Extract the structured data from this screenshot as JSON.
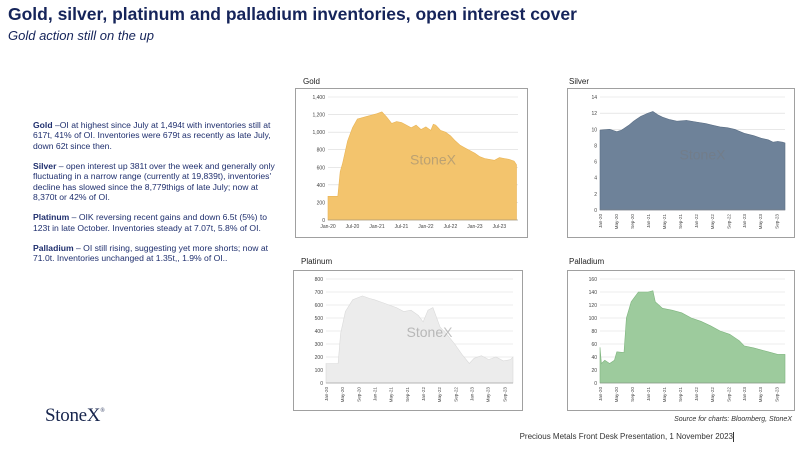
{
  "header": {
    "title": "Gold, silver, platinum and palladium inventories, open interest cover",
    "subtitle": "Gold action still on the up"
  },
  "bullets": [
    {
      "head": "Gold",
      "text": " –OI at highest since July at 1,494t with inventories still at 617t, 41% of OI.  Inventories were 679t as recently as late July, down 62t since then."
    },
    {
      "head": "Silver",
      "text": " – open interest up 381t over the week and generally only fluctuating in a narrow range (currently at 19,839t), inventories' decline has slowed since the 8,779thigs of late July; now at 8,370t or 42% of OI."
    },
    {
      "head": "Platinum",
      "text": " – OIK reversing recent gains and down 6.5t (5%) to 123t in late October.  Inventories steady at 7.07t, 5.8% of OI."
    },
    {
      "head": "Palladium",
      "text": " – OI still rising, suggesting yet more shorts; now at 71.0t.  Inventories unchanged at 1.35t,, 1.9% of OI.."
    }
  ],
  "logo": {
    "text": "StoneX",
    "mark": "®"
  },
  "source": "Source for charts: Bloomberg, StoneX",
  "footer": "Precious Metals Front Desk Presentation, 1 November 2023",
  "chart_data": [
    {
      "type": "area",
      "title": "Gold",
      "color": "#f3c46d",
      "stroke": "#e9b456",
      "watermark": "StoneX",
      "ylim": [
        0,
        1400
      ],
      "yticks": [
        0,
        200,
        400,
        600,
        800,
        1000,
        1200,
        1400
      ],
      "ytick_labels": [
        "0",
        "200",
        "400",
        "600",
        "800",
        "1,000",
        "1,200",
        "1,400"
      ],
      "xlim": [
        2020.0,
        2023.88
      ],
      "xticks": [
        2020.0,
        2020.5,
        2021.0,
        2021.5,
        2022.0,
        2022.5,
        2023.0,
        2023.5
      ],
      "xtick_labels": [
        "Jan-20",
        "Jul-20",
        "Jan-21",
        "Jul-21",
        "Jan-22",
        "Jul-22",
        "Jan-23",
        "Jul-23"
      ],
      "rotate_x": false,
      "x": [
        2020.0,
        2020.2,
        2020.25,
        2020.3,
        2020.4,
        2020.5,
        2020.6,
        2020.8,
        2021.0,
        2021.1,
        2021.2,
        2021.3,
        2021.4,
        2021.5,
        2021.6,
        2021.7,
        2021.8,
        2021.9,
        2022.0,
        2022.1,
        2022.15,
        2022.2,
        2022.3,
        2022.4,
        2022.5,
        2022.6,
        2022.7,
        2022.8,
        2022.9,
        2023.0,
        2023.1,
        2023.2,
        2023.3,
        2023.4,
        2023.5,
        2023.6,
        2023.7,
        2023.8,
        2023.85
      ],
      "y": [
        270,
        270,
        550,
        650,
        900,
        1050,
        1150,
        1180,
        1210,
        1230,
        1170,
        1100,
        1120,
        1110,
        1080,
        1050,
        1080,
        1030,
        1060,
        1020,
        1090,
        1080,
        1020,
        1000,
        960,
        900,
        850,
        820,
        790,
        760,
        720,
        700,
        690,
        680,
        710,
        700,
        690,
        670,
        630
      ]
    },
    {
      "type": "area",
      "title": "Silver",
      "color": "#6e8299",
      "stroke": "#5a6e85",
      "watermark": "StoneX",
      "ylim": [
        0,
        14
      ],
      "yticks": [
        0,
        2,
        4,
        6,
        8,
        10,
        12,
        14
      ],
      "ytick_labels": [
        "0",
        "2",
        "4",
        "6",
        "8",
        "10",
        "12",
        "14"
      ],
      "xlim": [
        2020.0,
        2023.85
      ],
      "xticks": [
        2020.0,
        2020.33,
        2020.67,
        2021.0,
        2021.33,
        2021.67,
        2022.0,
        2022.33,
        2022.67,
        2023.0,
        2023.33,
        2023.67
      ],
      "xtick_labels": [
        "Jan-20",
        "May-20",
        "Sep-20",
        "Jan-21",
        "May-21",
        "Sep-21",
        "Jan-22",
        "May-22",
        "Sep-22",
        "Jan-23",
        "May-23",
        "Sep-23"
      ],
      "rotate_x": true,
      "x": [
        2020.0,
        2020.2,
        2020.35,
        2020.45,
        2020.6,
        2020.7,
        2020.85,
        2021.0,
        2021.1,
        2021.2,
        2021.3,
        2021.45,
        2021.6,
        2021.8,
        2022.0,
        2022.2,
        2022.35,
        2022.5,
        2022.65,
        2022.8,
        2023.0,
        2023.2,
        2023.35,
        2023.5,
        2023.6,
        2023.7,
        2023.8,
        2023.85
      ],
      "y": [
        9.9,
        10.0,
        9.7,
        9.9,
        10.5,
        11.0,
        11.6,
        12.0,
        12.2,
        11.8,
        11.5,
        11.2,
        11.0,
        11.1,
        10.9,
        10.7,
        10.5,
        10.3,
        10.2,
        10.0,
        9.5,
        9.2,
        8.9,
        8.7,
        8.4,
        8.5,
        8.4,
        8.3
      ]
    },
    {
      "type": "area",
      "title": "Platinum",
      "color": "#ececec",
      "stroke": "#dadada",
      "watermark": "StoneX",
      "ylim": [
        0,
        800
      ],
      "yticks": [
        0,
        100,
        200,
        300,
        400,
        500,
        600,
        700,
        800
      ],
      "ytick_labels": [
        "0",
        "100",
        "200",
        "300",
        "400",
        "500",
        "600",
        "700",
        "800"
      ],
      "xlim": [
        2020.0,
        2023.85
      ],
      "xticks": [
        2020.0,
        2020.33,
        2020.67,
        2021.0,
        2021.33,
        2021.67,
        2022.0,
        2022.33,
        2022.67,
        2023.0,
        2023.33,
        2023.67
      ],
      "xtick_labels": [
        "Jan-20",
        "May-20",
        "Sep-20",
        "Jan-21",
        "May-21",
        "Sep-21",
        "Jan-22",
        "May-22",
        "Sep-22",
        "Jan-23",
        "May-23",
        "Sep-23"
      ],
      "rotate_x": true,
      "x": [
        2020.0,
        2020.25,
        2020.3,
        2020.4,
        2020.55,
        2020.75,
        2020.9,
        2021.0,
        2021.15,
        2021.3,
        2021.45,
        2021.6,
        2021.75,
        2021.9,
        2022.0,
        2022.1,
        2022.2,
        2022.35,
        2022.5,
        2022.65,
        2022.8,
        2022.95,
        2023.05,
        2023.2,
        2023.35,
        2023.5,
        2023.65,
        2023.8,
        2023.85
      ],
      "y": [
        150,
        150,
        380,
        550,
        640,
        670,
        650,
        640,
        620,
        600,
        580,
        550,
        560,
        520,
        470,
        560,
        580,
        430,
        370,
        300,
        220,
        150,
        190,
        210,
        180,
        200,
        170,
        180,
        200
      ]
    },
    {
      "type": "area",
      "title": "Palladium",
      "color": "#9dcb9d",
      "stroke": "#7fb57f",
      "watermark": "",
      "ylim": [
        0,
        160
      ],
      "yticks": [
        0,
        20,
        40,
        60,
        80,
        100,
        120,
        140,
        160
      ],
      "ytick_labels": [
        "0",
        "20",
        "40",
        "60",
        "80",
        "100",
        "120",
        "140",
        "160"
      ],
      "xlim": [
        2020.0,
        2023.85
      ],
      "xticks": [
        2020.0,
        2020.33,
        2020.67,
        2021.0,
        2021.33,
        2021.67,
        2022.0,
        2022.33,
        2022.67,
        2023.0,
        2023.33,
        2023.67
      ],
      "xtick_labels": [
        "Jan-20",
        "May-20",
        "Sep-20",
        "Jan-21",
        "May-21",
        "Sep-21",
        "Jan-22",
        "May-22",
        "Sep-22",
        "Jan-23",
        "May-23",
        "Sep-23"
      ],
      "rotate_x": true,
      "x": [
        2020.0,
        2020.03,
        2020.1,
        2020.2,
        2020.3,
        2020.35,
        2020.5,
        2020.55,
        2020.65,
        2020.8,
        2021.0,
        2021.1,
        2021.15,
        2021.3,
        2021.5,
        2021.7,
        2021.9,
        2022.1,
        2022.3,
        2022.5,
        2022.7,
        2022.9,
        2023.0,
        2023.2,
        2023.4,
        2023.5,
        2023.7,
        2023.85
      ],
      "y": [
        55,
        30,
        35,
        30,
        35,
        48,
        47,
        100,
        125,
        140,
        140,
        142,
        125,
        115,
        112,
        108,
        100,
        95,
        88,
        80,
        75,
        65,
        57,
        54,
        50,
        48,
        44,
        44
      ]
    }
  ]
}
